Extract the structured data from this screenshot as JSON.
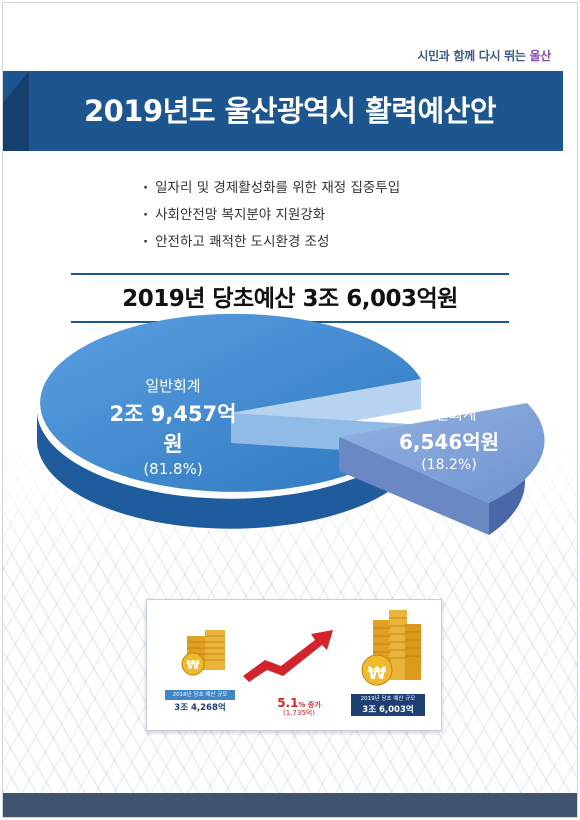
{
  "header": {
    "slogan_pre": "시민과 함께 다시 뛰는",
    "slogan_city": "울산"
  },
  "title": "2019년도 울산광역시 활력예산안",
  "bullets": [
    "일자리 및 경제활성화를 위한 재정 집중투입",
    "사회안전망 복지분야 지원강화",
    "안전하고 쾌적한 도시환경 조성"
  ],
  "total": "2019년 당초예산 3조 6,003억원",
  "chart_data": {
    "type": "pie",
    "slices": [
      {
        "name": "일반회계",
        "amount": "2조 9,457억원",
        "percent_label": "(81.8%)",
        "value": 81.8,
        "color": "#3d86c9"
      },
      {
        "name": "특별회계",
        "amount": "6,546억원",
        "percent_label": "(18.2%)",
        "value": 18.2,
        "color": "#7c9fd6"
      }
    ]
  },
  "comparison": {
    "prev_label": "2018년 당초 예산 규모",
    "prev_value": "3조 4,268억",
    "growth_rate": "5.1",
    "growth_suffix": "% 증가",
    "growth_amount": "(1,735억)",
    "curr_label": "2019년 당초 예산 규모",
    "curr_value": "3조 6,003억",
    "won_symbol": "₩"
  }
}
